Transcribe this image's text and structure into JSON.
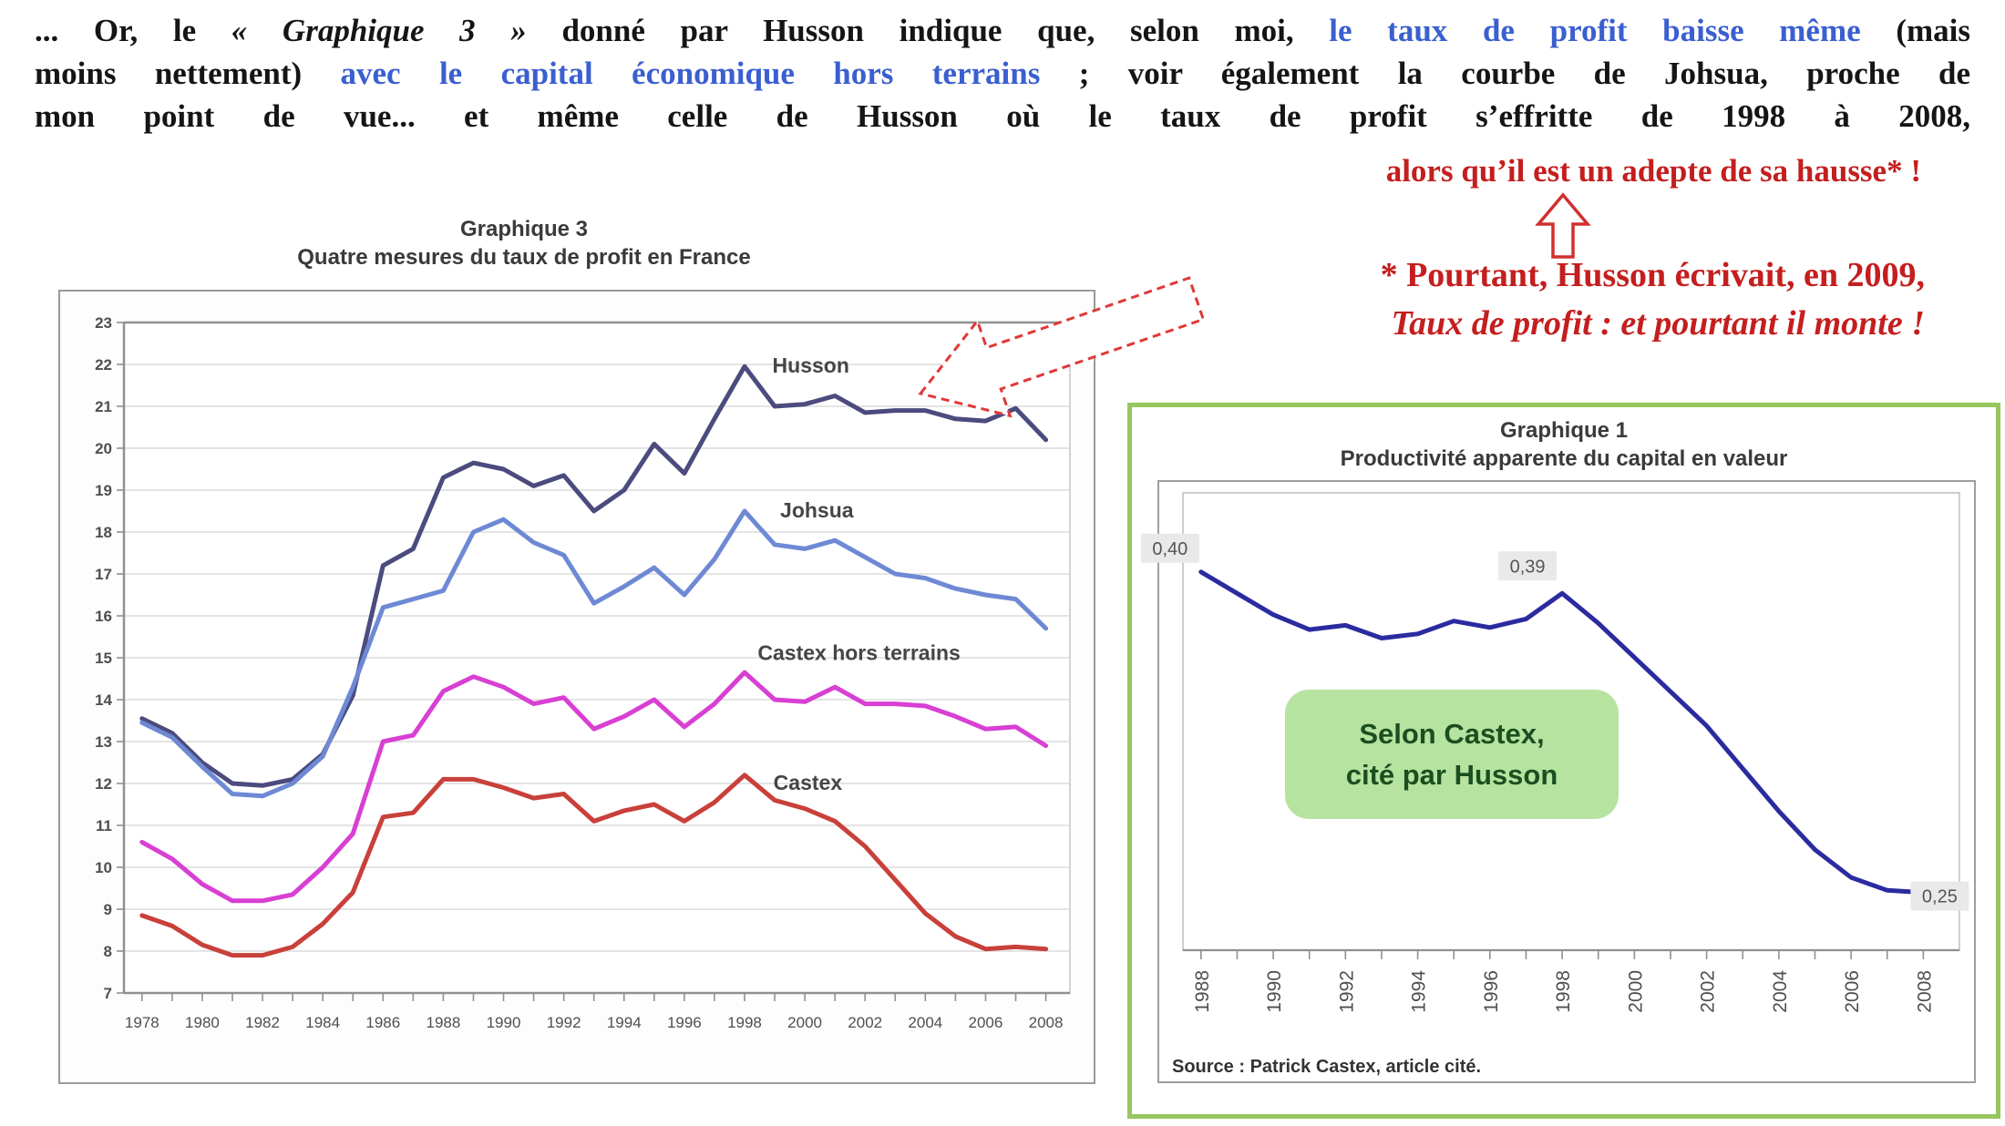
{
  "paragraph": {
    "line1": {
      "a": "... Or, le ",
      "b": "« Graphique 3 »",
      "c": " donné par Husson indique que, selon moi, ",
      "d": "le taux de profit baisse même",
      "e": " (mais"
    },
    "line2": {
      "a": "moins nettement) ",
      "b": "avec le capital économique hors terrains",
      "c": " ; voir également la courbe de Johsua, proche de"
    },
    "line3": "mon point de vue... et même celle de Husson où le taux de profit s’effritte de 1998 à 2008,"
  },
  "red_annotations": {
    "line": "alors qu’il est un adepte de sa hausse* !",
    "note1": "* Pourtant, Husson écrivait, en 2009,",
    "note2": "Taux de profit : et pourtant il monte !"
  },
  "colors": {
    "accent_blue": "#3a5fd0",
    "accent_red": "#c41e1e",
    "green_border": "#97c65e",
    "green_box_bg": "#b7e3a1",
    "green_box_text": "#1b4f1f",
    "grid": "#dcdcdc",
    "axis": "#909090"
  },
  "chart_data": [
    {
      "type": "line",
      "title1": "Graphique 3",
      "title2": "Quatre mesures du taux de profit en France",
      "x": [
        1978,
        1979,
        1980,
        1981,
        1982,
        1983,
        1984,
        1985,
        1986,
        1987,
        1988,
        1989,
        1990,
        1991,
        1992,
        1993,
        1994,
        1995,
        1996,
        1997,
        1998,
        1999,
        2000,
        2001,
        2002,
        2003,
        2004,
        2005,
        2006,
        2007,
        2008
      ],
      "ylim": [
        7,
        23
      ],
      "grid": true,
      "legend_position": "inline-labels",
      "series": [
        {
          "name": "Husson",
          "color": "#4b4b7e",
          "values": [
            13.55,
            13.2,
            12.5,
            12.0,
            11.95,
            12.1,
            12.7,
            14.1,
            17.2,
            17.6,
            19.3,
            19.65,
            19.5,
            19.1,
            19.35,
            18.5,
            19.0,
            20.1,
            19.4,
            20.7,
            21.95,
            21.0,
            21.05,
            21.25,
            20.85,
            20.9,
            20.9,
            20.7,
            20.65,
            20.95,
            20.2
          ]
        },
        {
          "name": "Johsua",
          "color": "#6e89d4",
          "values": [
            13.45,
            13.1,
            12.4,
            11.75,
            11.7,
            12.0,
            12.65,
            14.3,
            16.2,
            16.4,
            16.6,
            18.0,
            18.3,
            17.75,
            17.45,
            16.3,
            16.7,
            17.15,
            16.5,
            17.35,
            18.5,
            17.7,
            17.6,
            17.8,
            17.4,
            17.0,
            16.9,
            16.65,
            16.5,
            16.4,
            15.7
          ]
        },
        {
          "name": "Castex hors terrains",
          "color": "#d83fd3",
          "values": [
            10.6,
            10.2,
            9.6,
            9.2,
            9.2,
            9.35,
            10.0,
            10.8,
            13.0,
            13.15,
            14.2,
            14.55,
            14.3,
            13.9,
            14.05,
            13.3,
            13.6,
            14.0,
            13.35,
            13.9,
            14.65,
            14.0,
            13.95,
            14.3,
            13.9,
            13.9,
            13.85,
            13.6,
            13.3,
            13.35,
            12.9
          ]
        },
        {
          "name": "Castex",
          "color": "#c9403a",
          "values": [
            8.85,
            8.6,
            8.15,
            7.9,
            7.9,
            8.1,
            8.65,
            9.4,
            11.2,
            11.3,
            12.1,
            12.1,
            11.9,
            11.65,
            11.75,
            11.1,
            11.35,
            11.5,
            11.1,
            11.55,
            12.2,
            11.6,
            11.4,
            11.1,
            10.5,
            9.7,
            8.9,
            8.35,
            8.05,
            8.1,
            8.05
          ]
        }
      ],
      "labels": [
        {
          "text": "Husson",
          "year": 2000.2,
          "value": 21.8
        },
        {
          "text": "Johsua",
          "year": 2000.4,
          "value": 18.35
        },
        {
          "text": "Castex hors terrains",
          "year": 2001.8,
          "value": 14.95
        },
        {
          "text": "Castex",
          "year": 2000.1,
          "value": 11.85
        }
      ]
    },
    {
      "type": "line",
      "title1": "Graphique 1",
      "title2": "Productivité apparente du capital  en valeur",
      "x": [
        1988,
        1989,
        1990,
        1991,
        1992,
        1993,
        1994,
        1995,
        1996,
        1997,
        1998,
        1999,
        2000,
        2001,
        2002,
        2003,
        2004,
        2005,
        2006,
        2007,
        2008
      ],
      "ylim": [
        0.223,
        0.437
      ],
      "grid": false,
      "line_color": "#2b2ba0",
      "values": [
        0.4,
        0.39,
        0.38,
        0.373,
        0.375,
        0.369,
        0.371,
        0.377,
        0.374,
        0.378,
        0.39,
        0.376,
        0.36,
        0.344,
        0.328,
        0.308,
        0.288,
        0.27,
        0.257,
        0.251,
        0.25
      ],
      "point_labels": [
        {
          "text": "0,40",
          "year": 1988,
          "value": 0.4
        },
        {
          "text": "0,39",
          "year": 1998,
          "value": 0.39
        },
        {
          "text": "0,25",
          "year": 2008,
          "value": 0.25
        }
      ],
      "annotation_box": {
        "line1": "Selon Castex,",
        "line2": "cité par Husson"
      },
      "source": "Source : Patrick Castex, article cité."
    }
  ]
}
